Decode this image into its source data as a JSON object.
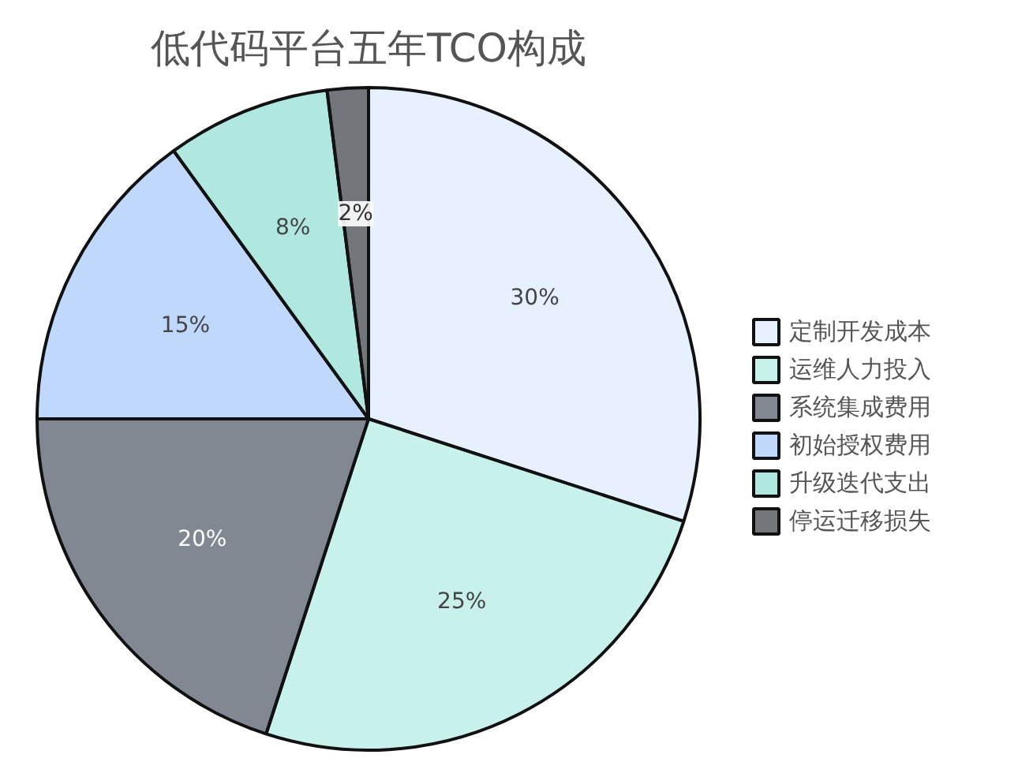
{
  "chart_data": {
    "type": "pie",
    "title": "低代码平台五年TCO构成",
    "categories": [
      "定制开发成本",
      "运维人力投入",
      "系统集成费用",
      "初始授权费用",
      "升级迭代支出",
      "停运迁移损失"
    ],
    "values": [
      30,
      25,
      20,
      15,
      8,
      2
    ],
    "colors": [
      "#dbeafe",
      "#b2ebe4",
      "#4b5563",
      "#a5c8fb",
      "#8fded2",
      "#373d44"
    ],
    "value_labels": [
      "30%",
      "25%",
      "20%",
      "15%",
      "8%",
      "2%"
    ],
    "legend": "right"
  }
}
